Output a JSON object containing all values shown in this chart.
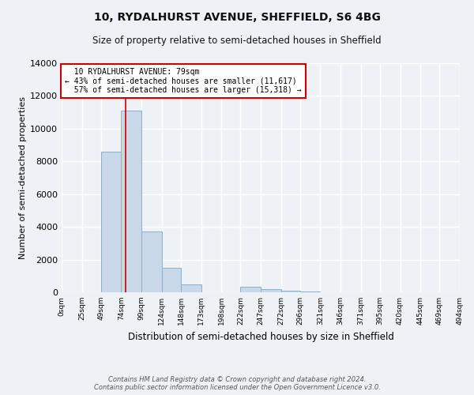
{
  "title": "10, RYDALHURST AVENUE, SHEFFIELD, S6 4BG",
  "subtitle": "Size of property relative to semi-detached houses in Sheffield",
  "xlabel": "Distribution of semi-detached houses by size in Sheffield",
  "ylabel": "Number of semi-detached properties",
  "property_size": 79,
  "property_label": "10 RYDALHURST AVENUE: 79sqm",
  "pct_smaller": 43,
  "pct_larger": 57,
  "count_smaller": 11617,
  "count_larger": 15318,
  "bar_color": "#c8d8e8",
  "bar_edge_color": "#8ab0cc",
  "vline_color": "#cc0000",
  "annotation_box_edge": "#cc0000",
  "background_color": "#eef2f7",
  "grid_color": "#ffffff",
  "footer": "Contains HM Land Registry data © Crown copyright and database right 2024.\nContains public sector information licensed under the Open Government Licence v3.0.",
  "bin_edges": [
    0,
    25,
    49,
    74,
    99,
    124,
    148,
    173,
    198,
    222,
    247,
    272,
    296,
    321,
    346,
    371,
    395,
    420,
    445,
    469,
    494
  ],
  "bin_labels": [
    "0sqm",
    "25sqm",
    "49sqm",
    "74sqm",
    "99sqm",
    "124sqm",
    "148sqm",
    "173sqm",
    "198sqm",
    "222sqm",
    "247sqm",
    "272sqm",
    "296sqm",
    "321sqm",
    "346sqm",
    "371sqm",
    "395sqm",
    "420sqm",
    "445sqm",
    "469sqm",
    "494sqm"
  ],
  "bar_heights": [
    0,
    0,
    8600,
    11100,
    3700,
    1500,
    500,
    0,
    0,
    350,
    200,
    80,
    30,
    0,
    0,
    0,
    0,
    0,
    0,
    0
  ],
  "ylim": [
    0,
    14000
  ],
  "yticks": [
    0,
    2000,
    4000,
    6000,
    8000,
    10000,
    12000,
    14000
  ]
}
